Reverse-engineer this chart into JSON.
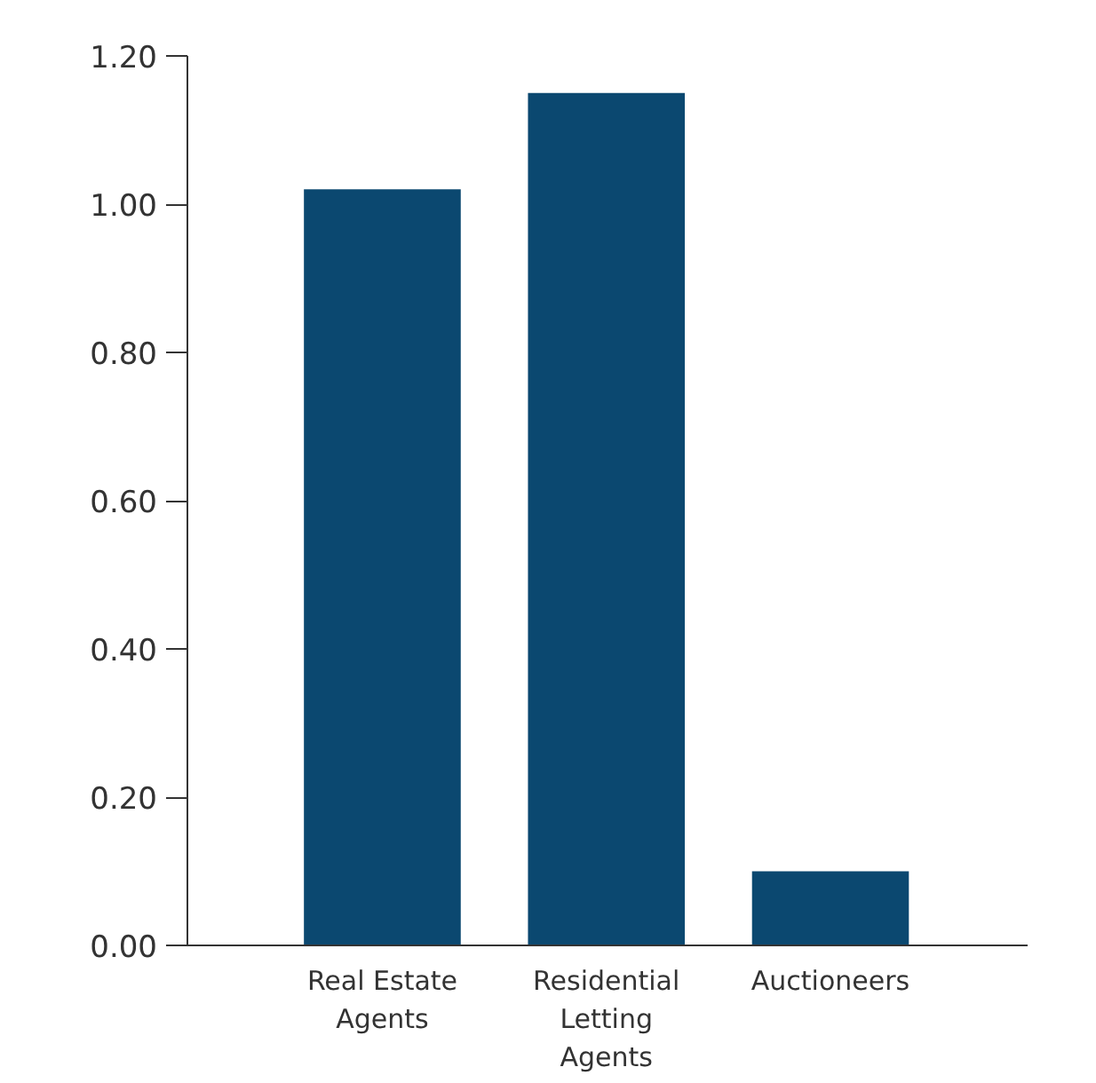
{
  "chart_data": {
    "type": "bar",
    "categories": [
      "Real Estate\nAgents",
      "Residential\nLetting\nAgents",
      "Auctioneers"
    ],
    "values": [
      1.02,
      1.15,
      0.1
    ],
    "color": "#0b4870",
    "ylim": [
      0,
      1.2
    ],
    "yticks": [
      {
        "value": 0,
        "label": "0.00"
      },
      {
        "value": 0.2,
        "label": "0.20"
      },
      {
        "value": 0.4,
        "label": "0.40"
      },
      {
        "value": 0.6,
        "label": "0.60"
      },
      {
        "value": 0.8,
        "label": "0.80"
      },
      {
        "value": 1.0,
        "label": "1.00"
      },
      {
        "value": 1.2,
        "label": "1.20"
      }
    ],
    "grid": false
  }
}
